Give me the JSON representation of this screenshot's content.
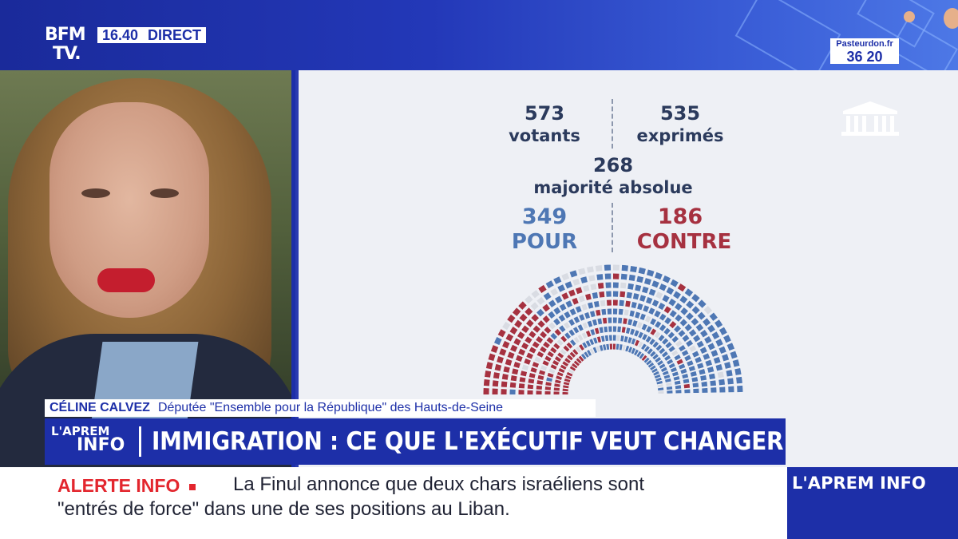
{
  "channel": {
    "logo_line1": "BFM",
    "logo_line2": "TV.",
    "time": "16.40",
    "live": "DIRECT",
    "corner_line1": "Pasteurdon.fr",
    "corner_line2": "36 20"
  },
  "vote": {
    "votants_value": "573",
    "votants_label": "votants",
    "exprimes_value": "535",
    "exprimes_label": "exprimés",
    "majorite_value": "268",
    "majorite_label": "majorité absolue",
    "pour_value": "349",
    "pour_label": "POUR",
    "contre_value": "186",
    "contre_label": "CONTRE",
    "colors": {
      "pour": "#4e77b4",
      "contre": "#a63140",
      "absent": "#d9dce3"
    }
  },
  "speaker": {
    "name": "CÉLINE CALVEZ",
    "role": "Députée \"Ensemble pour la République\" des Hauts-de-Seine"
  },
  "show": {
    "line1": "L'APREM",
    "line2": "INFO"
  },
  "headline": "IMMIGRATION : CE QUE L'EXÉCUTIF VEUT CHANGER",
  "ticker": {
    "label": "ALERTE INFO",
    "line1": "La Finul annonce que deux chars israéliens sont",
    "line2": "\"entrés de force\" dans une de ses positions au Liban."
  },
  "brand": "L'APREM INFO"
}
